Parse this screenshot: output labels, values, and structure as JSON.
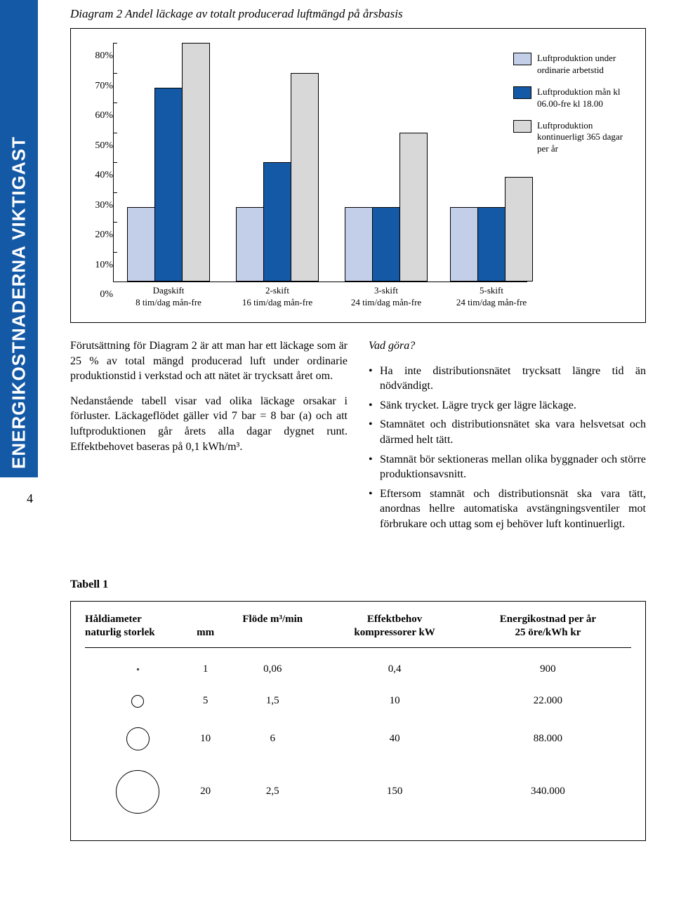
{
  "sidebar": {
    "label": "ENERGIKOSTNADERNA VIKTIGAST"
  },
  "page_number": "4",
  "diagram": {
    "title": "Diagram 2 Andel läckage av totalt producerad luftmängd på årsbasis",
    "chart": {
      "type": "bar",
      "ylim": [
        0,
        80
      ],
      "ytick_step": 10,
      "y_ticks": [
        "80%",
        "70%",
        "60%",
        "50%",
        "40%",
        "30%",
        "20%",
        "10%",
        "0%"
      ],
      "categories": [
        {
          "line1": "Dagskift",
          "line2": "8 tim/dag mån-fre"
        },
        {
          "line1": "2-skift",
          "line2": "16 tim/dag mån-fre"
        },
        {
          "line1": "3-skift",
          "line2": "24 tim/dag mån-fre"
        },
        {
          "line1": "5-skift",
          "line2": "24 tim/dag mån-fre"
        }
      ],
      "series_colors": [
        "#c3cfe9",
        "#1459a6",
        "#d8d8d8"
      ],
      "values": [
        [
          25,
          65,
          80
        ],
        [
          25,
          40,
          70
        ],
        [
          25,
          25,
          50
        ],
        [
          25,
          25,
          35
        ]
      ],
      "legend": [
        {
          "color": "#c3cfe9",
          "text": "Luftproduktion under ordinarie arbetstid"
        },
        {
          "color": "#1459a6",
          "text": "Luftproduktion mån kl 06.00-fre kl 18.00"
        },
        {
          "color": "#d8d8d8",
          "text": "Luftproduktion kontinuerligt 365 dagar per år"
        }
      ]
    }
  },
  "body": {
    "left": {
      "p1": "Förutsättning för Diagram 2 är att man har ett läckage som är 25 % av total mängd producerad luft under ordinarie produktionstid i verkstad och att nätet är trycksatt året om.",
      "p2": "Nedanstående tabell visar vad olika läckage orsakar i förluster. Läckageflödet gäller vid 7 bar = 8 bar (a) och att luftproduktionen går årets alla dagar dygnet runt. Effektbehovet baseras på 0,1 kWh/m³."
    },
    "right": {
      "heading": "Vad göra?",
      "bullets": [
        "Ha inte distributionsnätet trycksatt längre tid än nödvändigt.",
        "Sänk trycket. Lägre tryck ger lägre läckage.",
        "Stamnätet och distributionsnätet ska vara helsvetsat och därmed helt tätt.",
        "Stamnät bör sektioneras mellan olika byggnader och större produktionsavsnitt.",
        "Eftersom stamnät och distributionsnät ska vara tätt, anordnas hellre automatiska avstängningsventiler mot förbrukare och uttag som ej behöver luft kontinuerligt."
      ]
    }
  },
  "table": {
    "title": "Tabell 1",
    "headers": {
      "col1_l1": "Håldiameter",
      "col1_l2": "naturlig storlek",
      "col2": "mm",
      "col3": "Flöde m³/min",
      "col4_l1": "Effektbehov",
      "col4_l2": "kompressorer kW",
      "col5_l1": "Energikostnad per år",
      "col5_l2": "25 öre/kWh kr"
    },
    "rows": [
      {
        "d": 3,
        "mm": "1",
        "flode": "0,06",
        "eff": "0,4",
        "kost": "900"
      },
      {
        "d": 18,
        "mm": "5",
        "flode": "1,5",
        "eff": "10",
        "kost": "22.000"
      },
      {
        "d": 33,
        "mm": "10",
        "flode": "6",
        "eff": "40",
        "kost": "88.000"
      },
      {
        "d": 62,
        "mm": "20",
        "flode": "2,5",
        "eff": "150",
        "kost": "340.000"
      }
    ]
  }
}
